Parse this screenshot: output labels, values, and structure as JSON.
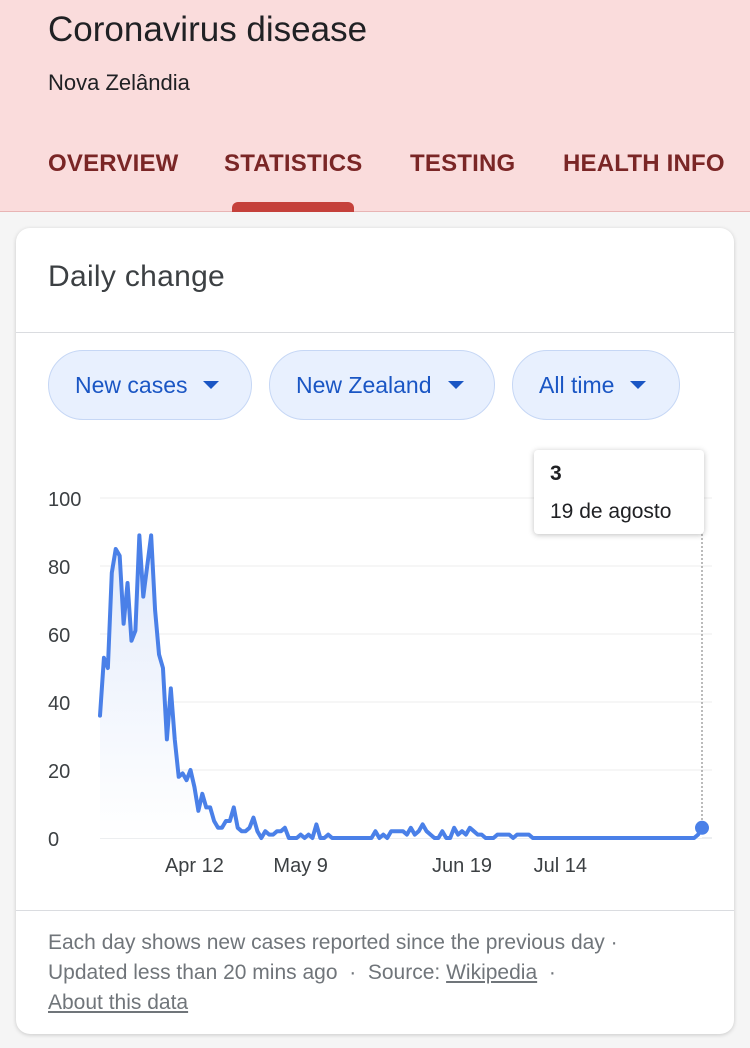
{
  "header": {
    "title": "Coronavirus disease",
    "subtitle": "Nova Zelândia",
    "tabs": [
      {
        "label": "OVERVIEW"
      },
      {
        "label": "STATISTICS",
        "selected": true
      },
      {
        "label": "TESTING"
      },
      {
        "label": "HEALTH INFO"
      }
    ]
  },
  "card": {
    "title": "Daily change",
    "chips": [
      {
        "label": "New cases",
        "icon": "dropdown-caret-icon"
      },
      {
        "label": "New Zealand",
        "icon": "dropdown-caret-icon"
      },
      {
        "label": "All time",
        "icon": "dropdown-caret-icon"
      }
    ],
    "tooltip": {
      "value": "3",
      "date": "19 de agosto"
    },
    "footer": {
      "line1": "Each day shows new cases reported since the previous day ·",
      "updated": "Updated less than 20 mins ago",
      "sep1": "·",
      "source_label": "Source:",
      "source_link": "Wikipedia",
      "sep2": "·",
      "about_link": "About this data"
    }
  },
  "colors": {
    "accent": "#4a80e8",
    "tab_text": "#7a2626",
    "tab_indicator": "#c5413b",
    "header_bg": "#fadcdc"
  },
  "chart_data": {
    "type": "area",
    "xlabel": "",
    "ylabel": "",
    "ylim": [
      0,
      100
    ],
    "yticks": [
      0,
      20,
      40,
      60,
      80,
      100
    ],
    "xticks": [
      {
        "label": "Apr 12",
        "index": 24
      },
      {
        "label": "May 9",
        "index": 51
      },
      {
        "label": "Jun 19",
        "index": 92
      },
      {
        "label": "Jul 14",
        "index": 117
      }
    ],
    "grid": true,
    "highlight_index": 153,
    "values": [
      36,
      53,
      50,
      78,
      85,
      83,
      63,
      75,
      58,
      61,
      89,
      71,
      80,
      89,
      67,
      54,
      50,
      29,
      44,
      29,
      18,
      19,
      17,
      20,
      15,
      8,
      13,
      9,
      9,
      5,
      3,
      3,
      5,
      5,
      9,
      3,
      2,
      2,
      3,
      6,
      2,
      0,
      2,
      1,
      1,
      2,
      2,
      3,
      0,
      0,
      0,
      1,
      0,
      1,
      0,
      4,
      0,
      0,
      1,
      0,
      0,
      0,
      0,
      0,
      0,
      0,
      0,
      0,
      0,
      0,
      2,
      0,
      1,
      0,
      2,
      2,
      2,
      2,
      1,
      3,
      1,
      2,
      4,
      2,
      1,
      0,
      0,
      2,
      0,
      0,
      3,
      1,
      2,
      1,
      3,
      2,
      1,
      1,
      0,
      0,
      0,
      1,
      1,
      1,
      1,
      0,
      1,
      1,
      1,
      1,
      0,
      0,
      0,
      0,
      0,
      0,
      0,
      0,
      0,
      0,
      0,
      0,
      0,
      0,
      0,
      0,
      0,
      0,
      0,
      0,
      0,
      0,
      0,
      0,
      0,
      0,
      0,
      0,
      0,
      0,
      0,
      0,
      0,
      0,
      0,
      0,
      0,
      0,
      0,
      0,
      0,
      0,
      1,
      3
    ]
  }
}
